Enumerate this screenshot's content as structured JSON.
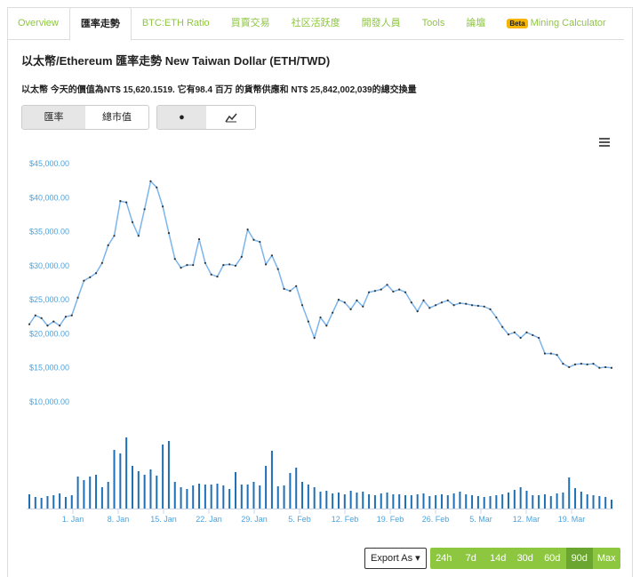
{
  "tabs": [
    "Overview",
    "匯率走勢",
    "BTC:ETH Ratio",
    "買賣交易",
    "社区活跃度",
    "開發人員",
    "Tools",
    "論壇"
  ],
  "beta_tab": {
    "badge": "Beta",
    "label": "Mining Calculator"
  },
  "title": "以太幣/Ethereum 匯率走勢 New Taiwan Dollar (ETH/TWD)",
  "description": "以太幣 今天的價值為NT$ 15,620.1519. 它有98.4 百万 的貨幣供應和 NT$ 25,842,002,039的總交換量",
  "metric_buttons": [
    "匯率",
    "總市值"
  ],
  "style_buttons": [
    "●"
  ],
  "export_button": "Export As",
  "range_buttons": [
    "24h",
    "7d",
    "14d",
    "30d",
    "60d",
    "90d",
    "Max"
  ],
  "chart_data": {
    "type": "line",
    "color": "#7cb5ec",
    "volume_color": "#1f6fb5",
    "grid": false,
    "ylim": [
      10000,
      45000
    ],
    "yticks": [
      {
        "value": 10000,
        "label": "$10,000.00"
      },
      {
        "value": 15000,
        "label": "$15,000.00"
      },
      {
        "value": 20000,
        "label": "$20,000.00"
      },
      {
        "value": 25000,
        "label": "$25,000.00"
      },
      {
        "value": 30000,
        "label": "$30,000.00"
      },
      {
        "value": 35000,
        "label": "$35,000.00"
      },
      {
        "value": 40000,
        "label": "$40,000.00"
      },
      {
        "value": 45000,
        "label": "$45,000.00"
      }
    ],
    "xticks": [
      "1. Jan",
      "8. Jan",
      "15. Jan",
      "22. Jan",
      "29. Jan",
      "5. Feb",
      "12. Feb",
      "19. Feb",
      "26. Feb",
      "5. Mar",
      "12. Mar",
      "19. Mar"
    ],
    "values": [
      21400,
      22700,
      22300,
      21200,
      21800,
      21200,
      22500,
      22700,
      25300,
      27800,
      28300,
      28900,
      30400,
      33000,
      34400,
      39500,
      39300,
      36400,
      34400,
      38300,
      42400,
      41500,
      38700,
      34800,
      31000,
      29700,
      30100,
      30100,
      33900,
      30400,
      28700,
      28400,
      30100,
      30200,
      30000,
      31300,
      35300,
      33800,
      33500,
      30200,
      31500,
      29500,
      26600,
      26300,
      27000,
      24200,
      21800,
      19400,
      22400,
      21200,
      23100,
      25000,
      24600,
      23600,
      24900,
      24000,
      26100,
      26300,
      26500,
      27200,
      26200,
      26500,
      26100,
      24600,
      23300,
      24900,
      23800,
      24200,
      24600,
      24900,
      24200,
      24500,
      24400,
      24200,
      24100,
      24000,
      23600,
      22400,
      21000,
      19900,
      20200,
      19400,
      20200,
      19800,
      19400,
      17100,
      17100,
      16900,
      15600,
      15100,
      15500,
      15600,
      15500,
      15600,
      15000,
      15100,
      15000
    ],
    "y2lim": [
      0,
      90
    ],
    "volumes": [
      16,
      13,
      12,
      14,
      15,
      17,
      13,
      15,
      36,
      32,
      36,
      38,
      24,
      30,
      66,
      62,
      80,
      48,
      42,
      38,
      44,
      37,
      72,
      76,
      30,
      24,
      22,
      26,
      28,
      27,
      27,
      28,
      26,
      22,
      41,
      27,
      27,
      30,
      26,
      48,
      65,
      25,
      26,
      40,
      46,
      30,
      27,
      24,
      19,
      20,
      17,
      18,
      16,
      20,
      18,
      19,
      16,
      15,
      17,
      18,
      16,
      16,
      15,
      15,
      16,
      17,
      14,
      15,
      16,
      15,
      17,
      19,
      16,
      15,
      14,
      13,
      14,
      15,
      16,
      18,
      21,
      24,
      20,
      15,
      15,
      16,
      14,
      17,
      18,
      35,
      23,
      19,
      16,
      15,
      14,
      13,
      10
    ]
  }
}
